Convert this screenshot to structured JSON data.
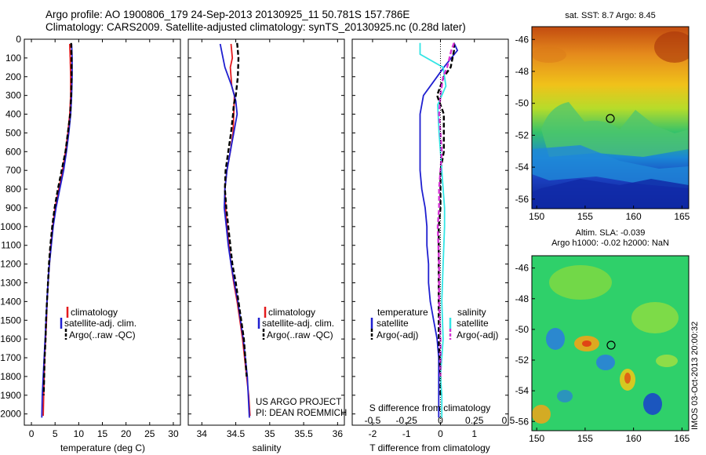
{
  "title_line1": "Argo profile: AO 1900806_179 24-Sep-2013 20130925_11 50.781S 157.786E",
  "title_line2": "Climatology: CARS2009. Satellite-adjusted climatology: synTS_20130925.nc (0.28d later)",
  "colors": {
    "climatology": "#e41a1c",
    "satellite": "#1f1fd0",
    "argo": "#000000",
    "sal_satellite": "#33e5e5",
    "sal_argo": "#d633d6"
  },
  "map_sst": {
    "title": "sat. SST: 8.7 Argo: 8.45",
    "xticks": [
      "150",
      "155",
      "160",
      "165"
    ],
    "yticks": [
      "-46",
      "-48",
      "-50",
      "-52",
      "-54",
      "-56"
    ]
  },
  "map_sla": {
    "title_line1": "Altim. SLA: -0.039",
    "title_line2": "Argo h1000: -0.02 h2000: NaN",
    "xticks": [
      "150",
      "155",
      "160",
      "165"
    ],
    "yticks": [
      "-46",
      "-48",
      "-50",
      "-52",
      "-54",
      "-56"
    ]
  },
  "footer": {
    "project": "US ARGO PROJECT",
    "pi": "PI: DEAN ROEMMICH"
  },
  "stamp": "IMOS 03-Oct-2013 20:00:32",
  "chart_data": [
    {
      "type": "line",
      "xlabel": "temperature (deg C)",
      "xlim": [
        -1.5,
        31.5
      ],
      "ylim": [
        2060,
        0
      ],
      "xticks": [
        0,
        5,
        10,
        15,
        20,
        25,
        30
      ],
      "yticks": [
        0,
        100,
        200,
        300,
        400,
        500,
        600,
        700,
        800,
        900,
        1000,
        1100,
        1200,
        1300,
        1400,
        1500,
        1600,
        1700,
        1800,
        1900,
        2000
      ],
      "legend": [
        "climatology",
        "satellite-adj. clim.",
        "Argo(..raw -QC)"
      ],
      "legend_position": "lower-center",
      "series": [
        {
          "name": "climatology",
          "style": "red",
          "x": [
            8.1,
            8.2,
            8.3,
            8.3,
            8.2,
            8.1,
            7.7,
            7.2,
            6.6,
            5.8,
            5.0,
            4.5,
            4.1,
            3.8,
            3.5,
            3.3,
            3.2,
            3.0,
            2.8,
            2.7,
            2.6,
            2.5
          ],
          "y": [
            25,
            100,
            200,
            300,
            350,
            400,
            500,
            600,
            700,
            800,
            900,
            1000,
            1100,
            1200,
            1300,
            1400,
            1500,
            1600,
            1700,
            1800,
            1900,
            2010
          ]
        },
        {
          "name": "satellite-adj. clim.",
          "style": "blue",
          "x": [
            8.5,
            8.6,
            8.6,
            8.5,
            8.3,
            7.9,
            7.4,
            6.8,
            6.0,
            5.2,
            4.6,
            4.2,
            3.8,
            3.5,
            3.3,
            3.1,
            2.9,
            2.7,
            2.5,
            2.3,
            2.2
          ],
          "y": [
            25,
            100,
            200,
            300,
            400,
            500,
            600,
            700,
            800,
            900,
            1000,
            1100,
            1200,
            1300,
            1400,
            1500,
            1600,
            1700,
            1800,
            1900,
            2020
          ]
        },
        {
          "name": "Argo(..raw -QC)",
          "style": "black-dash",
          "x": [
            8.4,
            8.5,
            8.5,
            8.4,
            8.3,
            8.2,
            7.7,
            7.2,
            6.4,
            5.6,
            4.9,
            4.4,
            4.0,
            3.7,
            3.5,
            3.3,
            3.1,
            3.0,
            2.8,
            2.7,
            2.6
          ],
          "y": [
            20,
            100,
            200,
            300,
            350,
            400,
            500,
            600,
            700,
            800,
            900,
            1000,
            1100,
            1200,
            1300,
            1400,
            1500,
            1600,
            1700,
            1800,
            1900
          ]
        }
      ]
    },
    {
      "type": "line",
      "xlabel": "salinity",
      "xlim": [
        33.8,
        36.1
      ],
      "ylim": [
        2060,
        0
      ],
      "xticks": [
        "34",
        "34.5",
        "35",
        "35.5",
        "36"
      ],
      "legend": [
        "climatology",
        "satellite-adj. clim.",
        "Argo(..raw -QC)"
      ],
      "legend_position": "lower-center",
      "series": [
        {
          "name": "climatology",
          "style": "red",
          "x": [
            34.43,
            34.45,
            34.42,
            34.44,
            34.48,
            34.47,
            34.46,
            34.42,
            34.37,
            34.34,
            34.35,
            34.37,
            34.4,
            34.43,
            34.47,
            34.52,
            34.56,
            34.6,
            34.63,
            34.66,
            34.69,
            34.71
          ],
          "y": [
            25,
            100,
            150,
            250,
            300,
            400,
            500,
            600,
            700,
            800,
            900,
            1000,
            1100,
            1200,
            1300,
            1400,
            1500,
            1600,
            1700,
            1800,
            1900,
            2010
          ]
        },
        {
          "name": "satellite-adj. clim.",
          "style": "blue",
          "x": [
            34.27,
            34.3,
            34.34,
            34.44,
            34.5,
            34.52,
            34.47,
            34.42,
            34.37,
            34.34,
            34.33,
            34.36,
            34.39,
            34.43,
            34.48,
            34.53,
            34.57,
            34.61,
            34.64,
            34.67,
            34.7
          ],
          "y": [
            25,
            80,
            150,
            250,
            330,
            400,
            500,
            600,
            700,
            800,
            900,
            1000,
            1100,
            1200,
            1300,
            1400,
            1500,
            1600,
            1700,
            1800,
            2020
          ]
        },
        {
          "name": "Argo(..raw -QC)",
          "style": "black-dash",
          "x": [
            34.52,
            34.54,
            34.53,
            34.5,
            34.47,
            34.46,
            34.43,
            34.39,
            34.35,
            34.34,
            34.36,
            34.39,
            34.42,
            34.45,
            34.5,
            34.54,
            34.58,
            34.62,
            34.64,
            34.66
          ],
          "y": [
            20,
            100,
            200,
            300,
            350,
            400,
            500,
            600,
            700,
            800,
            900,
            1000,
            1100,
            1200,
            1300,
            1400,
            1500,
            1600,
            1700,
            1800
          ]
        }
      ]
    },
    {
      "type": "line",
      "xlabel": "T difference from climatology",
      "xlabel_top": "S difference from climatology",
      "xlim": [
        -2.6,
        2.0
      ],
      "ylim": [
        2060,
        0
      ],
      "xticks": [
        "-2",
        "-1",
        "0",
        "1"
      ],
      "xticks_top": [
        "-0.5",
        "-0.25",
        "0",
        "0.25",
        "0.5"
      ],
      "legend_temperature": [
        "temperature",
        "satellite",
        "Argo(-adj)"
      ],
      "legend_salinity": [
        "salinity",
        "satellite",
        "Argo(-adj)"
      ],
      "series": [
        {
          "name": "satellite",
          "group": "temperature",
          "style": "blue",
          "x": [
            0.4,
            0.5,
            0.1,
            -0.1,
            -0.5,
            -0.6,
            -0.6,
            -0.6,
            -0.6,
            -0.55,
            -0.5,
            -0.45,
            -0.4,
            -0.4,
            -0.35,
            -0.35,
            -0.3,
            -0.2,
            -0.1,
            -0.05,
            -0.05,
            -0.05,
            -0.05
          ],
          "y": [
            20,
            60,
            150,
            200,
            300,
            400,
            500,
            600,
            700,
            800,
            850,
            900,
            1000,
            1100,
            1200,
            1300,
            1400,
            1500,
            1600,
            1700,
            1800,
            1900,
            2020
          ]
        },
        {
          "name": "Argo(-adj)",
          "group": "temperature",
          "style": "black-dash",
          "x": [
            0.4,
            0.4,
            0.3,
            0.1,
            -0.1,
            0.1,
            0.1,
            0.1,
            0.0,
            0.0,
            0.0,
            -0.05,
            -0.05,
            -0.05,
            -0.05,
            0.0,
            0.0
          ],
          "y": [
            20,
            60,
            150,
            200,
            300,
            400,
            500,
            600,
            700,
            800,
            900,
            1000,
            1200,
            1400,
            1600,
            1800,
            1900
          ]
        },
        {
          "name": "satellite",
          "group": "salinity",
          "style": "cyan",
          "x": [
            -0.15,
            -0.15,
            0.02,
            0.04,
            -0.02,
            -0.01,
            0.0,
            0.01,
            0.02,
            0.03,
            0.03,
            0.02,
            0.01,
            0.02,
            0.0,
            0.01,
            0.01
          ],
          "y": [
            20,
            80,
            150,
            250,
            350,
            500,
            600,
            700,
            800,
            900,
            1000,
            1200,
            1400,
            1600,
            1800,
            1900,
            2020
          ]
        },
        {
          "name": "Argo(-adj)",
          "group": "salinity",
          "style": "magenta-dash",
          "x": [
            0.1,
            0.08,
            0.05,
            0.02,
            0.0,
            -0.01,
            0.0,
            0.01,
            0.0,
            -0.01,
            -0.01,
            -0.02,
            -0.01,
            -0.01,
            0.0,
            0.0
          ],
          "y": [
            20,
            60,
            150,
            200,
            300,
            400,
            500,
            600,
            700,
            800,
            900,
            1000,
            1200,
            1400,
            1600,
            1800
          ]
        }
      ]
    }
  ]
}
